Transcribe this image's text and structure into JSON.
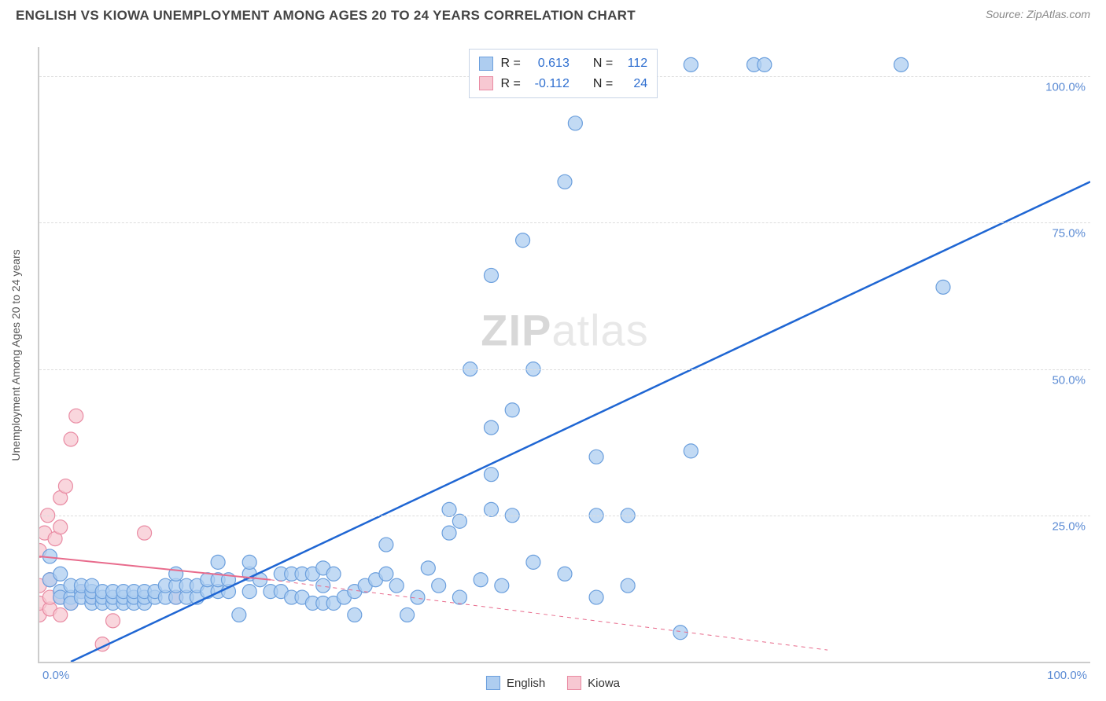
{
  "title": "ENGLISH VS KIOWA UNEMPLOYMENT AMONG AGES 20 TO 24 YEARS CORRELATION CHART",
  "source": "Source: ZipAtlas.com",
  "ylabel": "Unemployment Among Ages 20 to 24 years",
  "watermark_bold": "ZIP",
  "watermark_light": "atlas",
  "chart": {
    "type": "scatter",
    "xlim": [
      0,
      100
    ],
    "ylim": [
      0,
      105
    ],
    "background_color": "#ffffff",
    "grid_color": "#dddddd",
    "axis_color": "#cccccc",
    "ytick_positions": [
      25,
      50,
      75,
      100
    ],
    "ytick_labels": [
      "25.0%",
      "50.0%",
      "75.0%",
      "100.0%"
    ],
    "ytick_color": "#5b8bd4",
    "xtick_left": "0.0%",
    "xtick_right": "100.0%",
    "xtick_color": "#5b8bd4",
    "series": {
      "english": {
        "label": "English",
        "fill": "#aecdf0",
        "stroke": "#6b9fdd",
        "line_color": "#1f66d3",
        "line_width": 2.5,
        "marker_radius": 9,
        "trend": {
          "x1": 3,
          "y1": 0,
          "x2": 100,
          "y2": 82
        },
        "points": [
          [
            1,
            18
          ],
          [
            1,
            14
          ],
          [
            2,
            12
          ],
          [
            2,
            15
          ],
          [
            2,
            11
          ],
          [
            3,
            11
          ],
          [
            3,
            13
          ],
          [
            3,
            10
          ],
          [
            4,
            12
          ],
          [
            4,
            11
          ],
          [
            4,
            13
          ],
          [
            5,
            10
          ],
          [
            5,
            11
          ],
          [
            5,
            12
          ],
          [
            5,
            13
          ],
          [
            6,
            10
          ],
          [
            6,
            11
          ],
          [
            6,
            12
          ],
          [
            7,
            10
          ],
          [
            7,
            11
          ],
          [
            7,
            12
          ],
          [
            8,
            10
          ],
          [
            8,
            11
          ],
          [
            8,
            12
          ],
          [
            9,
            10
          ],
          [
            9,
            11
          ],
          [
            9,
            12
          ],
          [
            10,
            10
          ],
          [
            10,
            11
          ],
          [
            10,
            12
          ],
          [
            11,
            11
          ],
          [
            11,
            12
          ],
          [
            12,
            11
          ],
          [
            12,
            13
          ],
          [
            13,
            11
          ],
          [
            13,
            13
          ],
          [
            13,
            15
          ],
          [
            14,
            11
          ],
          [
            14,
            13
          ],
          [
            15,
            11
          ],
          [
            15,
            13
          ],
          [
            16,
            12
          ],
          [
            16,
            14
          ],
          [
            17,
            12
          ],
          [
            17,
            14
          ],
          [
            17,
            17
          ],
          [
            18,
            12
          ],
          [
            18,
            14
          ],
          [
            19,
            8
          ],
          [
            20,
            12
          ],
          [
            20,
            15
          ],
          [
            20,
            17
          ],
          [
            21,
            14
          ],
          [
            22,
            12
          ],
          [
            23,
            12
          ],
          [
            23,
            15
          ],
          [
            24,
            11
          ],
          [
            24,
            15
          ],
          [
            25,
            11
          ],
          [
            25,
            15
          ],
          [
            26,
            10
          ],
          [
            26,
            15
          ],
          [
            27,
            10
          ],
          [
            27,
            13
          ],
          [
            27,
            16
          ],
          [
            28,
            10
          ],
          [
            28,
            15
          ],
          [
            29,
            11
          ],
          [
            30,
            12
          ],
          [
            30,
            8
          ],
          [
            31,
            13
          ],
          [
            32,
            14
          ],
          [
            33,
            15
          ],
          [
            33,
            20
          ],
          [
            34,
            13
          ],
          [
            35,
            8
          ],
          [
            36,
            11
          ],
          [
            37,
            16
          ],
          [
            38,
            13
          ],
          [
            39,
            22
          ],
          [
            39,
            26
          ],
          [
            40,
            11
          ],
          [
            40,
            24
          ],
          [
            41,
            50
          ],
          [
            42,
            14
          ],
          [
            43,
            26
          ],
          [
            43,
            32
          ],
          [
            43,
            40
          ],
          [
            43,
            66
          ],
          [
            44,
            13
          ],
          [
            45,
            25
          ],
          [
            45,
            43
          ],
          [
            46,
            72
          ],
          [
            47,
            17
          ],
          [
            47,
            50
          ],
          [
            50,
            15
          ],
          [
            50,
            82
          ],
          [
            51,
            92
          ],
          [
            51,
            102
          ],
          [
            53,
            11
          ],
          [
            53,
            25
          ],
          [
            53,
            35
          ],
          [
            55,
            102
          ],
          [
            56,
            13
          ],
          [
            56,
            25
          ],
          [
            61,
            5
          ],
          [
            62,
            36
          ],
          [
            62,
            102
          ],
          [
            68,
            102
          ],
          [
            69,
            102
          ],
          [
            82,
            102
          ],
          [
            86,
            64
          ]
        ]
      },
      "kiowa": {
        "label": "Kiowa",
        "fill": "#f7c8d2",
        "stroke": "#e98ba3",
        "line_color": "#e86b8c",
        "line_width": 2,
        "marker_radius": 9,
        "trend_solid": {
          "x1": 0,
          "y1": 18,
          "x2": 22,
          "y2": 14
        },
        "trend_dash": {
          "x1": 22,
          "y1": 14,
          "x2": 75,
          "y2": 2
        },
        "points": [
          [
            0,
            8
          ],
          [
            0,
            10
          ],
          [
            0,
            13
          ],
          [
            0,
            19
          ],
          [
            0.5,
            22
          ],
          [
            0.8,
            25
          ],
          [
            1,
            9
          ],
          [
            1,
            11
          ],
          [
            1,
            14
          ],
          [
            1.5,
            21
          ],
          [
            2,
            8
          ],
          [
            2,
            11
          ],
          [
            2,
            23
          ],
          [
            2,
            28
          ],
          [
            2.5,
            30
          ],
          [
            3,
            10
          ],
          [
            3,
            38
          ],
          [
            3.5,
            42
          ],
          [
            4,
            12
          ],
          [
            5,
            11
          ],
          [
            6,
            3
          ],
          [
            7,
            7
          ],
          [
            10,
            22
          ],
          [
            13,
            11
          ]
        ]
      }
    }
  },
  "stats": {
    "rows": [
      {
        "swatch_fill": "#aecdf0",
        "swatch_stroke": "#6b9fdd",
        "r": "0.613",
        "n": "112"
      },
      {
        "swatch_fill": "#f7c8d2",
        "swatch_stroke": "#e98ba3",
        "r": "-0.112",
        "n": "24"
      }
    ],
    "r_label": "R =",
    "n_label": "N ="
  },
  "legend": {
    "english": "English",
    "kiowa": "Kiowa"
  }
}
